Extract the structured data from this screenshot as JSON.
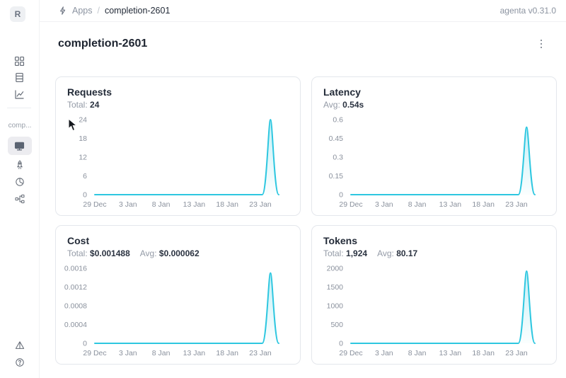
{
  "header": {
    "breadcrumb": {
      "section": "Apps",
      "separator": "/",
      "current": "completion-2601"
    },
    "version": "agenta v0.31.0"
  },
  "sidebar": {
    "logo_text": "R",
    "app_label": "comp...",
    "selected_item": "overview-desktop",
    "icon_names": [
      "apps-grid",
      "table-rows",
      "line-chart",
      "desktop",
      "rocket",
      "chart-donut",
      "tree-structure",
      "pyramid",
      "help"
    ]
  },
  "main": {
    "title": "completion-2601"
  },
  "chart_data": [
    {
      "id": "requests",
      "type": "area",
      "title": "Requests",
      "stats": [
        {
          "label": "Total:",
          "value": "24"
        }
      ],
      "y_ticks": [
        "0",
        "6",
        "12",
        "18",
        "24"
      ],
      "y_max": 24,
      "x_labels": [
        "29 Dec",
        "3 Jan",
        "8 Jan",
        "13 Jan",
        "18 Jan",
        "23 Jan"
      ],
      "spike": {
        "rise_start": 0.91,
        "peak": 0.955,
        "end": 1.0,
        "peak_value": 24
      },
      "line_color": "#2ec7e0"
    },
    {
      "id": "latency",
      "type": "area",
      "title": "Latency",
      "stats": [
        {
          "label": "Avg:",
          "value": "0.54s"
        }
      ],
      "y_ticks": [
        "0",
        "0.15",
        "0.3",
        "0.45",
        "0.6"
      ],
      "y_max": 0.6,
      "x_labels": [
        "29 Dec",
        "3 Jan",
        "8 Jan",
        "13 Jan",
        "18 Jan",
        "23 Jan"
      ],
      "spike": {
        "rise_start": 0.91,
        "peak": 0.955,
        "end": 1.0,
        "peak_value": 0.54
      },
      "line_color": "#2ec7e0"
    },
    {
      "id": "cost",
      "type": "area",
      "title": "Cost",
      "stats": [
        {
          "label": "Total:",
          "value": "$0.001488"
        },
        {
          "label": "Avg:",
          "value": "$0.000062"
        }
      ],
      "y_ticks": [
        "0",
        "0.0004",
        "0.0008",
        "0.0012",
        "0.0016"
      ],
      "y_max": 0.0016,
      "x_labels": [
        "29 Dec",
        "3 Jan",
        "8 Jan",
        "13 Jan",
        "18 Jan",
        "23 Jan"
      ],
      "spike": {
        "rise_start": 0.91,
        "peak": 0.955,
        "end": 1.0,
        "peak_value": 0.0015
      },
      "line_color": "#2ec7e0"
    },
    {
      "id": "tokens",
      "type": "area",
      "title": "Tokens",
      "stats": [
        {
          "label": "Total:",
          "value": "1,924"
        },
        {
          "label": "Avg:",
          "value": "80.17"
        }
      ],
      "y_ticks": [
        "0",
        "500",
        "1000",
        "1500",
        "2000"
      ],
      "y_max": 2000,
      "x_labels": [
        "29 Dec",
        "3 Jan",
        "8 Jan",
        "13 Jan",
        "18 Jan",
        "23 Jan"
      ],
      "spike": {
        "rise_start": 0.91,
        "peak": 0.955,
        "end": 1.0,
        "peak_value": 1924
      },
      "line_color": "#2ec7e0"
    }
  ],
  "colors": {
    "accent_line": "#2ec7e0",
    "card_border": "#e4e7ec",
    "axis_text": "#8a919d",
    "text_primary": "#232b38",
    "text_secondary": "#939aa6"
  }
}
